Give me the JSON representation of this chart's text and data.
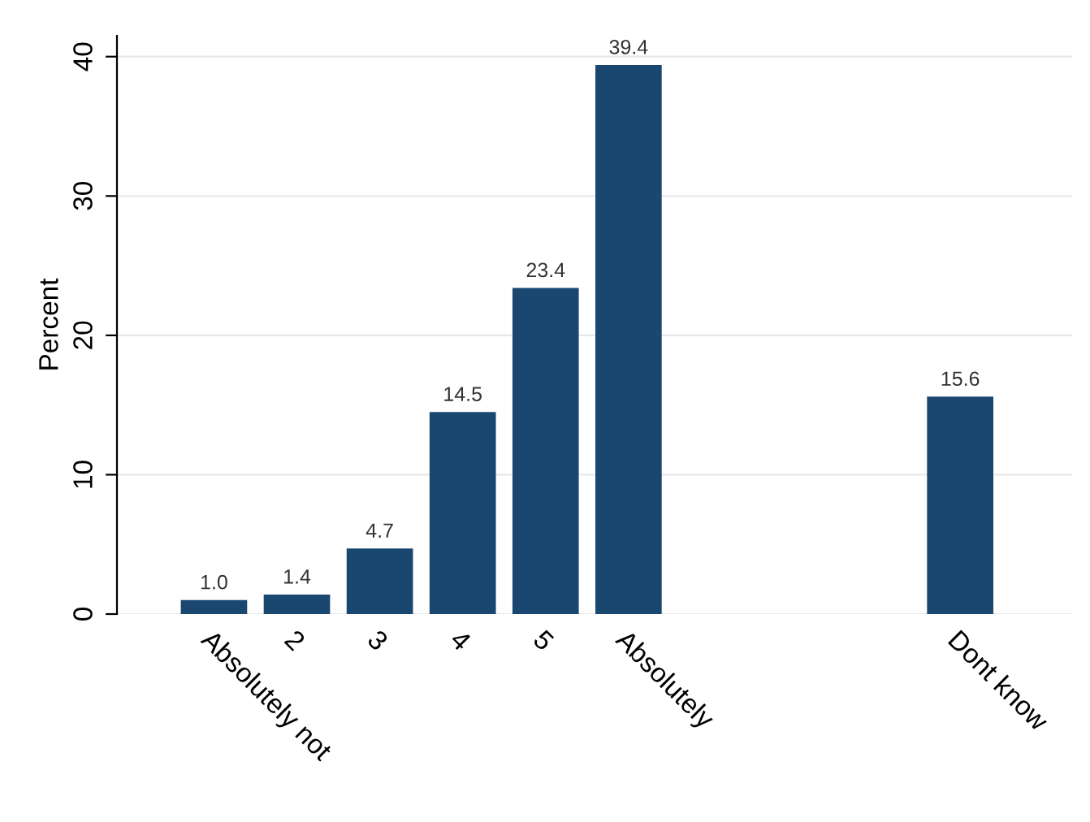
{
  "chart_data": {
    "type": "bar",
    "ylabel": "Percent",
    "categories": [
      "Absolutely not",
      "2",
      "3",
      "4",
      "5",
      "Absolutely",
      null,
      null,
      null,
      "Dont know"
    ],
    "values": [
      1.0,
      1.4,
      4.7,
      14.5,
      23.4,
      39.4,
      null,
      null,
      null,
      15.6
    ],
    "color": "#1a476f",
    "ylim": [
      0,
      41.5
    ],
    "yticks": [
      0,
      10,
      20,
      30,
      40
    ],
    "value_labels": [
      "1.0",
      "1.4",
      "4.7",
      "14.5",
      "23.4",
      "39.4",
      null,
      null,
      null,
      "15.6"
    ],
    "grid": "y"
  }
}
